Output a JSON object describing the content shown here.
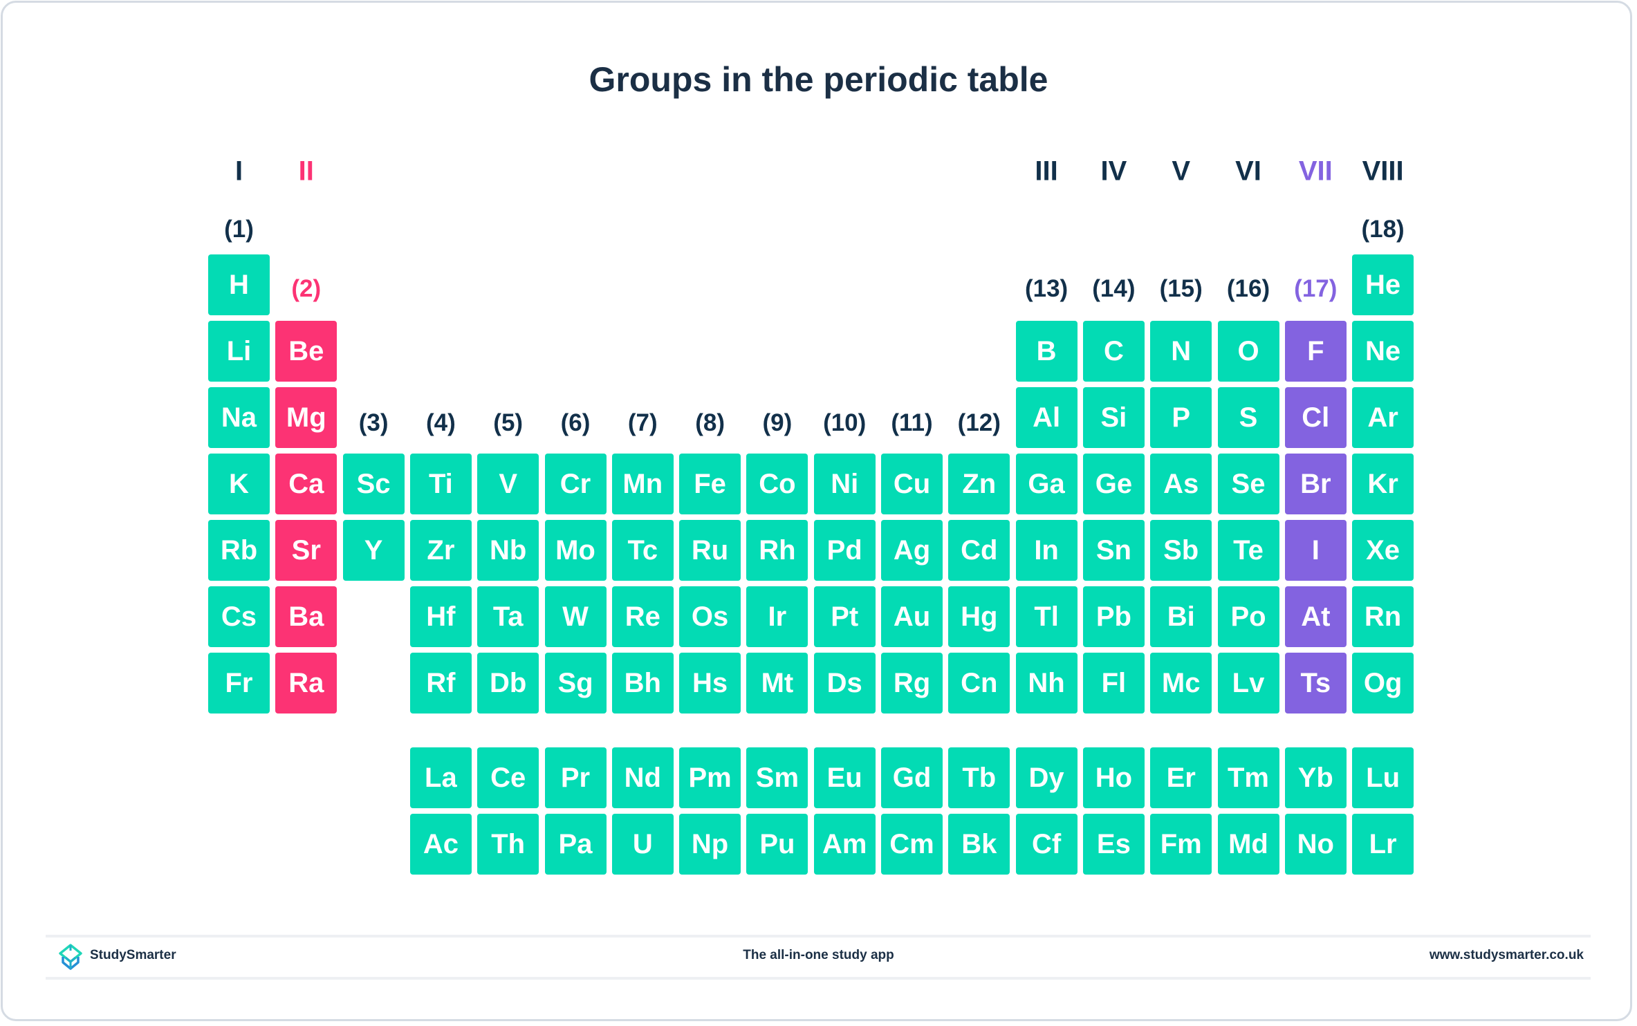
{
  "title": "Groups in the periodic table",
  "colors": {
    "default": "#03dbb4",
    "group_2": "#fc3374",
    "group_17": "#8363e0",
    "text": "#12304a"
  },
  "roman_labels": {
    "1": "I",
    "2": "II",
    "13": "III",
    "14": "IV",
    "15": "V",
    "16": "VI",
    "17": "VII",
    "18": "VIII"
  },
  "group_numbers": [
    "(1)",
    "(2)",
    "(3)",
    "(4)",
    "(5)",
    "(6)",
    "(7)",
    "(8)",
    "(9)",
    "(10)",
    "(11)",
    "(12)",
    "(13)",
    "(14)",
    "(15)",
    "(16)",
    "(17)",
    "(18)"
  ],
  "periods": [
    [
      "H",
      "",
      "",
      "",
      "",
      "",
      "",
      "",
      "",
      "",
      "",
      "",
      "",
      "",
      "",
      "",
      "",
      "He"
    ],
    [
      "Li",
      "Be",
      "",
      "",
      "",
      "",
      "",
      "",
      "",
      "",
      "",
      "",
      "B",
      "C",
      "N",
      "O",
      "F",
      "Ne"
    ],
    [
      "Na",
      "Mg",
      "",
      "",
      "",
      "",
      "",
      "",
      "",
      "",
      "",
      "",
      "Al",
      "Si",
      "P",
      "S",
      "Cl",
      "Ar"
    ],
    [
      "K",
      "Ca",
      "Sc",
      "Ti",
      "V",
      "Cr",
      "Mn",
      "Fe",
      "Co",
      "Ni",
      "Cu",
      "Zn",
      "Ga",
      "Ge",
      "As",
      "Se",
      "Br",
      "Kr"
    ],
    [
      "Rb",
      "Sr",
      "Y",
      "Zr",
      "Nb",
      "Mo",
      "Tc",
      "Ru",
      "Rh",
      "Pd",
      "Ag",
      "Cd",
      "In",
      "Sn",
      "Sb",
      "Te",
      "I",
      "Xe"
    ],
    [
      "Cs",
      "Ba",
      "",
      "Hf",
      "Ta",
      "W",
      "Re",
      "Os",
      "Ir",
      "Pt",
      "Au",
      "Hg",
      "Tl",
      "Pb",
      "Bi",
      "Po",
      "At",
      "Rn"
    ],
    [
      "Fr",
      "Ra",
      "",
      "Rf",
      "Db",
      "Sg",
      "Bh",
      "Hs",
      "Mt",
      "Ds",
      "Rg",
      "Cn",
      "Nh",
      "Fl",
      "Mc",
      "Lv",
      "Ts",
      "Og"
    ]
  ],
  "lanthanides": [
    "La",
    "Ce",
    "Pr",
    "Nd",
    "Pm",
    "Sm",
    "Eu",
    "Gd",
    "Tb",
    "Dy",
    "Ho",
    "Er",
    "Tm",
    "Yb",
    "Lu"
  ],
  "actinides": [
    "Ac",
    "Th",
    "Pa",
    "U",
    "Np",
    "Pu",
    "Am",
    "Cm",
    "Bk",
    "Cf",
    "Es",
    "Fm",
    "Md",
    "No",
    "Lr"
  ],
  "footer": {
    "brand": "StudySmarter",
    "tagline": "The all-in-one study app",
    "url": "www.studysmarter.co.uk"
  }
}
